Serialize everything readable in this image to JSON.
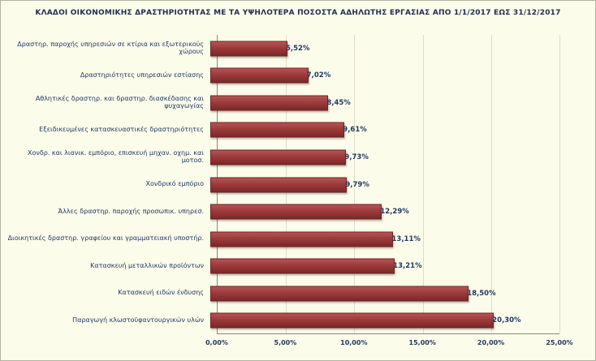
{
  "chart_data": {
    "type": "bar",
    "orientation": "horizontal",
    "title": "ΚΛΑΔΟΙ ΟΙΚΟΝΟΜΙΚΗΣ ΔΡΑΣΤΗΡΙΟΤΗΤΑΣ ΜΕ ΤΑ ΥΨΗΛΟΤΕΡΑ ΠΟΣΟΣΤΑ ΑΔΗΛΩΤΗΣ ΕΡΓΑΣΙΑΣ ΑΠΟ 1/1/2017 ΕΩΣ 31/12/2017",
    "categories": [
      "Δραστηρ. παροχής υπηρεσιών σε κτίρια και εξωτερικούς χώρους",
      "Δραστηριότητες υπηρεσιών εστίασης",
      "Αθλητικές δραστηρ. και δραστηρ. διασκέδασης και ψυχαγωγίας",
      "Εξειδικευμένες κατασκευαστικές δραστηριότητες",
      "Χονδρ. και λιανικ. εμπόριο, επισκευή μηχαν. οχημ. και μοτοσ.",
      "Χονδρικό εμπόριο",
      "Άλλες δραστηρ. παροχής προσωπικ. υπηρεσ.",
      "Διοικητικές δραστηρ. γραφείου και γραμματειακή υποστήρ.",
      "Κατασκευή μεταλλικών προϊόντων",
      "Κατασκευή ειδών ένδυσης",
      "Παραγωγή κλωστοϋφαντουργικών υλών"
    ],
    "values": [
      5.52,
      7.02,
      8.45,
      9.61,
      9.73,
      9.79,
      12.29,
      13.11,
      13.21,
      18.5,
      20.3
    ],
    "value_labels": [
      "5,52%",
      "7,02%",
      "8,45%",
      "9,61%",
      "9,73%",
      "9,79%",
      "12,29%",
      "13,11%",
      "13,21%",
      "18,50%",
      "20,30%"
    ],
    "x_ticks": [
      "0,00%",
      "5,00%",
      "10,00%",
      "15,00%",
      "20,00%",
      "25,00%"
    ],
    "xlim": [
      0,
      25
    ],
    "xlabel": "",
    "ylabel": "",
    "grid": true,
    "legend": false,
    "colors": {
      "bar": "#9C3B3B",
      "label": "#1F3864",
      "background": "#FCFCEA"
    }
  }
}
